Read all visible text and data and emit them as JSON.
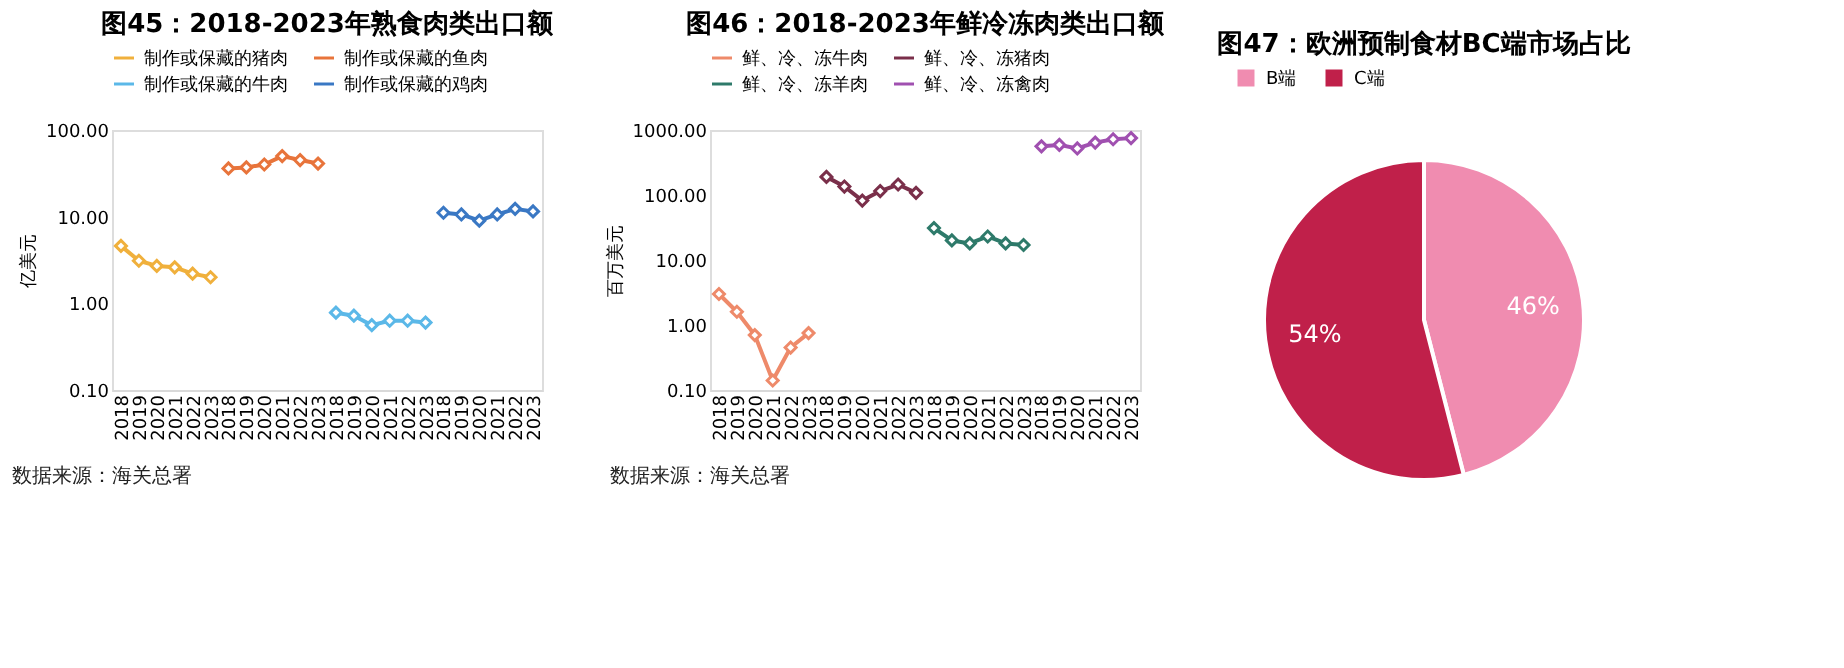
{
  "chart_data": [
    {
      "type": "line",
      "title": "图45：2018-2023年熟食肉类出口额",
      "ylabel": "亿美元",
      "log": true,
      "legend": "top",
      "marker": "diamond",
      "grid": false,
      "categories": [
        "2018",
        "2019",
        "2020",
        "2021",
        "2022",
        "2023",
        "2018",
        "2019",
        "2020",
        "2021",
        "2022",
        "2023",
        "2018",
        "2019",
        "2020",
        "2021",
        "2022",
        "2023",
        "2018",
        "2019",
        "2020",
        "2021",
        "2022",
        "2023"
      ],
      "ylim": [
        0.1,
        100
      ],
      "yticks": [
        {
          "value": 0.1,
          "label": "0.10"
        },
        {
          "value": 1,
          "label": "1.00"
        },
        {
          "value": 10,
          "label": "10.00"
        },
        {
          "value": 100,
          "label": "100.00"
        }
      ],
      "series": [
        {
          "name": "制作或保藏的猪肉",
          "color": "#f0b03c",
          "values": [
            4.6,
            3.1,
            2.7,
            2.6,
            2.2,
            2.0,
            null,
            null,
            null,
            null,
            null,
            null,
            null,
            null,
            null,
            null,
            null,
            null,
            null,
            null,
            null,
            null,
            null,
            null
          ]
        },
        {
          "name": "制作或保藏的鱼肉",
          "color": "#e8743b",
          "values": [
            null,
            null,
            null,
            null,
            null,
            null,
            36,
            37,
            40,
            50,
            45,
            41,
            null,
            null,
            null,
            null,
            null,
            null,
            null,
            null,
            null,
            null,
            null,
            null
          ]
        },
        {
          "name": "制作或保藏的牛肉",
          "color": "#5bb8e8",
          "values": [
            null,
            null,
            null,
            null,
            null,
            null,
            null,
            null,
            null,
            null,
            null,
            null,
            0.78,
            0.72,
            0.56,
            0.63,
            0.63,
            0.6,
            null,
            null,
            null,
            null,
            null,
            null
          ]
        },
        {
          "name": "制作或保藏的鸡肉",
          "color": "#3a78c4",
          "values": [
            null,
            null,
            null,
            null,
            null,
            null,
            null,
            null,
            null,
            null,
            null,
            null,
            null,
            null,
            null,
            null,
            null,
            null,
            11.1,
            10.6,
            9.0,
            10.6,
            12.3,
            11.5
          ]
        }
      ],
      "annotations": [
        "数据来源：海关总署"
      ]
    },
    {
      "type": "line",
      "title": "图46：2018-2023年鲜冷冻肉类出口额",
      "ylabel": "百万美元",
      "log": true,
      "legend": "top",
      "marker": "diamond",
      "grid": false,
      "categories": [
        "2018",
        "2019",
        "2020",
        "2021",
        "2022",
        "2023",
        "2018",
        "2019",
        "2020",
        "2021",
        "2022",
        "2023",
        "2018",
        "2019",
        "2020",
        "2021",
        "2022",
        "2023",
        "2018",
        "2019",
        "2020",
        "2021",
        "2022",
        "2023"
      ],
      "ylim": [
        0.1,
        1000
      ],
      "yticks": [
        {
          "value": 0.1,
          "label": "0.10"
        },
        {
          "value": 1,
          "label": "1.00"
        },
        {
          "value": 10,
          "label": "10.00"
        },
        {
          "value": 100,
          "label": "100.00"
        },
        {
          "value": 1000,
          "label": "1000.00"
        }
      ],
      "series": [
        {
          "name": "鲜、冷、冻牛肉",
          "color": "#ee8a6a",
          "values": [
            3.0,
            1.6,
            0.7,
            0.14,
            0.45,
            0.75,
            null,
            null,
            null,
            null,
            null,
            null,
            null,
            null,
            null,
            null,
            null,
            null,
            null,
            null,
            null,
            null,
            null,
            null
          ]
        },
        {
          "name": "鲜、冷、冻猪肉",
          "color": "#7a2f4a",
          "values": [
            null,
            null,
            null,
            null,
            null,
            null,
            190,
            135,
            82,
            115,
            145,
            108,
            null,
            null,
            null,
            null,
            null,
            null,
            null,
            null,
            null,
            null,
            null,
            null
          ]
        },
        {
          "name": "鲜、冷、冻羊肉",
          "color": "#2e7a6a",
          "values": [
            null,
            null,
            null,
            null,
            null,
            null,
            null,
            null,
            null,
            null,
            null,
            null,
            31,
            20,
            18,
            23,
            18,
            17,
            null,
            null,
            null,
            null,
            null,
            null
          ]
        },
        {
          "name": "鲜、冷、冻禽肉",
          "color": "#a050b0",
          "values": [
            null,
            null,
            null,
            null,
            null,
            null,
            null,
            null,
            null,
            null,
            null,
            null,
            null,
            null,
            null,
            null,
            null,
            null,
            560,
            590,
            520,
            640,
            720,
            750
          ]
        }
      ],
      "annotations": [
        "数据来源：海关总署"
      ]
    },
    {
      "type": "pie",
      "title": "图47：欧洲预制食材BC端市场占比",
      "legend": "top",
      "categories": [
        "B端",
        "C端"
      ],
      "values": [
        46,
        54
      ],
      "colors": [
        "#f08cb0",
        "#c0204a"
      ],
      "value_labels": [
        "46%",
        "54%"
      ]
    }
  ]
}
